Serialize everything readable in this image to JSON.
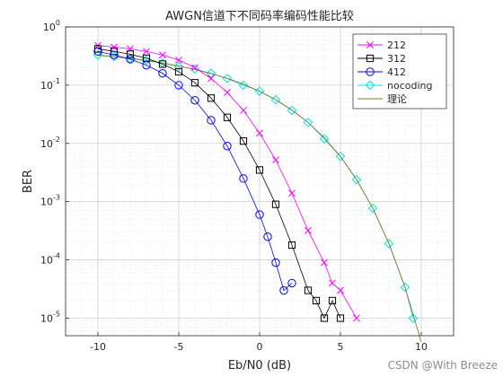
{
  "watermark": "CSDN @With Breeze",
  "chart_data": {
    "type": "line",
    "title": "AWGN信道下不同码率编码性能比较",
    "xlabel": "Eb/N0 (dB)",
    "ylabel": "BER",
    "xlim": [
      -12,
      12
    ],
    "ylim": [
      5e-06,
      1
    ],
    "yscale": "log",
    "grid": true,
    "minor_grid": true,
    "legend_position": "top-right",
    "x_ticks": [
      "-10",
      "-5",
      "0",
      "5",
      "10"
    ],
    "y_ticks": [
      {
        "base": "10",
        "exp": "0",
        "value": 1
      },
      {
        "base": "10",
        "exp": "-1",
        "value": 0.1
      },
      {
        "base": "10",
        "exp": "-2",
        "value": 0.01
      },
      {
        "base": "10",
        "exp": "-3",
        "value": 0.001
      },
      {
        "base": "10",
        "exp": "-4",
        "value": 0.0001
      },
      {
        "base": "10",
        "exp": "-5",
        "value": 1e-05
      }
    ],
    "series": [
      {
        "name": "212",
        "color": "#ff00ff",
        "marker": "x",
        "x": [
          -10,
          -9,
          -8,
          -7,
          -6,
          -5,
          -4,
          -3,
          -2,
          -1,
          0,
          1,
          2,
          3,
          4,
          4.5,
          5,
          6
        ],
        "y": [
          0.48,
          0.45,
          0.42,
          0.38,
          0.33,
          0.27,
          0.2,
          0.13,
          0.075,
          0.037,
          0.015,
          0.0052,
          0.0014,
          0.00032,
          9e-05,
          4e-05,
          3e-05,
          1e-05
        ]
      },
      {
        "name": "312",
        "color": "#000000",
        "marker": "square",
        "x": [
          -10,
          -9,
          -8,
          -7,
          -6,
          -5,
          -4,
          -3,
          -2,
          -1,
          0,
          1,
          2,
          3,
          3.5,
          4,
          4.5,
          5
        ],
        "y": [
          0.42,
          0.38,
          0.34,
          0.29,
          0.23,
          0.17,
          0.11,
          0.06,
          0.028,
          0.011,
          0.0035,
          0.0009,
          0.00018,
          3e-05,
          2e-05,
          1e-05,
          2e-05,
          1e-05
        ]
      },
      {
        "name": "412",
        "color": "#0000ff",
        "marker": "circle",
        "x": [
          -10,
          -9,
          -8,
          -7,
          -6,
          -5,
          -4,
          -3,
          -2,
          -1,
          0,
          0.5,
          1,
          1.5,
          2
        ],
        "y": [
          0.38,
          0.33,
          0.28,
          0.22,
          0.16,
          0.1,
          0.055,
          0.025,
          0.009,
          0.0025,
          0.0006,
          0.00025,
          9e-05,
          3e-05,
          4e-05
        ]
      },
      {
        "name": "nocoding",
        "color": "#00e5e5",
        "marker": "diamond",
        "x": [
          -10,
          -9,
          -8,
          -7,
          -6,
          -5,
          -4,
          -3,
          -2,
          -1,
          0,
          1,
          2,
          3,
          4,
          5,
          6,
          7,
          8,
          9,
          9.5
        ],
        "y": [
          0.33,
          0.31,
          0.29,
          0.27,
          0.24,
          0.21,
          0.19,
          0.16,
          0.13,
          0.1,
          0.079,
          0.056,
          0.037,
          0.023,
          0.012,
          0.006,
          0.0024,
          0.00077,
          0.00019,
          3.4e-05,
          1e-05
        ]
      },
      {
        "name": "理论",
        "color": "#7a7a2a",
        "marker": "none",
        "x": [
          -10,
          -9,
          -8,
          -7,
          -6,
          -5,
          -4,
          -3,
          -2,
          -1,
          0,
          1,
          2,
          3,
          4,
          5,
          6,
          7,
          8,
          9,
          10
        ],
        "y": [
          0.327,
          0.308,
          0.287,
          0.264,
          0.24,
          0.213,
          0.186,
          0.158,
          0.131,
          0.104,
          0.0786,
          0.0563,
          0.0375,
          0.0229,
          0.0125,
          0.00595,
          0.00239,
          0.000773,
          0.000191,
          3.36e-05,
          3.9e-06
        ]
      }
    ]
  }
}
